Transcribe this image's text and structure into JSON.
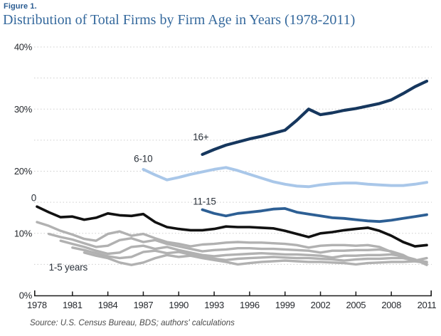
{
  "figure": {
    "label": "Figure 1.",
    "title": "Distribution of Total Firms by Firm Age in Years (1978-2011)",
    "source": "Source: U.S. Census Bureau, BDS; authors' calculations"
  },
  "colors": {
    "title_blue": "#35699d",
    "figure_label_blue": "#2a5c92",
    "axis_text": "#26292e",
    "gridline": "#cdcdcd",
    "axis_line": "#1a1a1a",
    "age0_black": "#111111",
    "age1to5_gray": "#b1b1b1",
    "age6to10_lightblue": "#a9c7e9",
    "age11to15_blue": "#2d5f94",
    "age16plus_navy": "#16375e"
  },
  "chart_data": {
    "type": "line",
    "title": "Distribution of Total Firms by Firm Age in Years (1978-2011)",
    "xlabel": "",
    "ylabel": "",
    "x_ticks": [
      1978,
      1981,
      1984,
      1987,
      1990,
      1993,
      1996,
      1999,
      2002,
      2005,
      2008,
      2011
    ],
    "y_ticks": [
      {
        "value": 0,
        "label": "0%"
      },
      {
        "value": 10,
        "label": "10%"
      },
      {
        "value": 20,
        "label": "20%"
      },
      {
        "value": 30,
        "label": "30%"
      },
      {
        "value": 40,
        "label": "40%"
      }
    ],
    "xlim": [
      1978,
      2011
    ],
    "ylim": [
      0,
      40
    ],
    "gridline_step": 5,
    "grid": true,
    "legend_position": "inline-annotations",
    "series": [
      {
        "name": "1",
        "group": "1-5 years",
        "color": "#b1b1b1",
        "width": 3.4,
        "start_year": 1978,
        "values": [
          11.8,
          11.2,
          10.4,
          9.8,
          9.1,
          8.8,
          9.9,
          10.3,
          9.6,
          9.9,
          9.2,
          8.6,
          8.3,
          7.9,
          8.2,
          8.3,
          8.5,
          8.6,
          8.5,
          8.5,
          8.4,
          8.3,
          8.1,
          7.7,
          8.0,
          8.1,
          8.1,
          8.0,
          8.1,
          7.8,
          7.0,
          6.0,
          5.6,
          6.0
        ]
      },
      {
        "name": "2",
        "group": "1-5 years",
        "color": "#b1b1b1",
        "width": 3.4,
        "start_year": 1979,
        "values": [
          9.9,
          9.4,
          9.0,
          8.4,
          7.8,
          8.0,
          8.9,
          9.2,
          8.6,
          8.9,
          8.3,
          7.9,
          7.5,
          7.1,
          7.3,
          7.4,
          7.6,
          7.6,
          7.5,
          7.5,
          7.4,
          7.3,
          7.2,
          6.9,
          7.2,
          7.2,
          7.3,
          7.3,
          7.4,
          7.1,
          6.5,
          5.5,
          5.2
        ]
      },
      {
        "name": "3",
        "group": "1-5 years",
        "color": "#b1b1b1",
        "width": 3.4,
        "start_year": 1980,
        "values": [
          8.8,
          8.3,
          7.8,
          7.2,
          6.7,
          6.9,
          7.8,
          8.0,
          7.5,
          7.8,
          7.3,
          6.9,
          6.5,
          6.3,
          6.5,
          6.6,
          6.7,
          6.8,
          6.7,
          6.6,
          6.6,
          6.5,
          6.4,
          6.1,
          6.4,
          6.4,
          6.5,
          6.5,
          6.6,
          6.3,
          5.8,
          4.9
        ]
      },
      {
        "name": "4",
        "group": "1-5 years",
        "color": "#b1b1b1",
        "width": 3.4,
        "start_year": 1981,
        "values": [
          7.7,
          7.3,
          6.8,
          6.3,
          6.0,
          6.2,
          7.0,
          7.2,
          6.8,
          7.0,
          6.6,
          6.3,
          5.9,
          5.7,
          5.9,
          6.0,
          6.1,
          6.2,
          6.1,
          6.0,
          6.0,
          5.9,
          5.8,
          5.6,
          5.8,
          5.9,
          5.9,
          6.0,
          6.0,
          5.7,
          5.4
        ]
      },
      {
        "name": "5",
        "group": "1-5 years",
        "color": "#b1b1b1",
        "width": 3.4,
        "start_year": 1982,
        "values": [
          6.9,
          6.4,
          6.0,
          5.3,
          4.9,
          5.3,
          6.0,
          6.5,
          6.2,
          6.4,
          6.0,
          5.7,
          5.4,
          5.0,
          5.2,
          5.4,
          5.5,
          5.6,
          5.5,
          5.4,
          5.4,
          5.3,
          5.2,
          5.0,
          5.2,
          5.3,
          5.4,
          5.4,
          5.5,
          5.3
        ]
      },
      {
        "name": "0",
        "group": "0",
        "color": "#111111",
        "width": 3.6,
        "start_year": 1978,
        "values": [
          14.3,
          13.4,
          12.6,
          12.7,
          12.2,
          12.5,
          13.2,
          12.9,
          12.8,
          13.1,
          11.8,
          11.0,
          10.7,
          10.5,
          10.5,
          10.7,
          11.1,
          11.0,
          11.0,
          10.9,
          10.8,
          10.4,
          9.9,
          9.4,
          10.0,
          10.2,
          10.5,
          10.7,
          10.9,
          10.4,
          9.6,
          8.6,
          7.9,
          8.1
        ]
      },
      {
        "name": "6-10",
        "group": "6-10",
        "color": "#a9c7e9",
        "width": 4.0,
        "start_year": 1987,
        "values": [
          20.3,
          19.4,
          18.6,
          19.0,
          19.5,
          19.9,
          20.3,
          20.6,
          20.1,
          19.5,
          18.9,
          18.3,
          17.9,
          17.6,
          17.5,
          17.8,
          18.0,
          18.1,
          18.1,
          17.9,
          17.8,
          17.7,
          17.7,
          17.9,
          18.2
        ]
      },
      {
        "name": "11-15",
        "group": "11-15",
        "color": "#2d5f94",
        "width": 3.8,
        "start_year": 1992,
        "values": [
          13.8,
          13.2,
          12.8,
          13.2,
          13.4,
          13.6,
          13.9,
          14.0,
          13.4,
          13.1,
          12.8,
          12.5,
          12.4,
          12.2,
          12.0,
          11.9,
          12.1,
          12.4,
          12.7,
          13.0
        ]
      },
      {
        "name": "16+",
        "group": "16+",
        "color": "#16375e",
        "width": 4.2,
        "start_year": 1992,
        "values": [
          22.7,
          23.5,
          24.2,
          24.7,
          25.2,
          25.6,
          26.1,
          26.6,
          28.2,
          30.0,
          29.1,
          29.4,
          29.8,
          30.1,
          30.5,
          30.9,
          31.5,
          32.5,
          33.6,
          34.5
        ]
      }
    ],
    "annotations": [
      {
        "text": "0",
        "year": 1977.5,
        "value": 15.2
      },
      {
        "text": "1-5 years",
        "year": 1979.0,
        "value": 4.0
      },
      {
        "text": "6-10",
        "year": 1986.2,
        "value": 21.5
      },
      {
        "text": "11-15",
        "year": 1991.2,
        "value": 14.6
      },
      {
        "text": "16+",
        "year": 1991.2,
        "value": 25.0
      }
    ]
  }
}
